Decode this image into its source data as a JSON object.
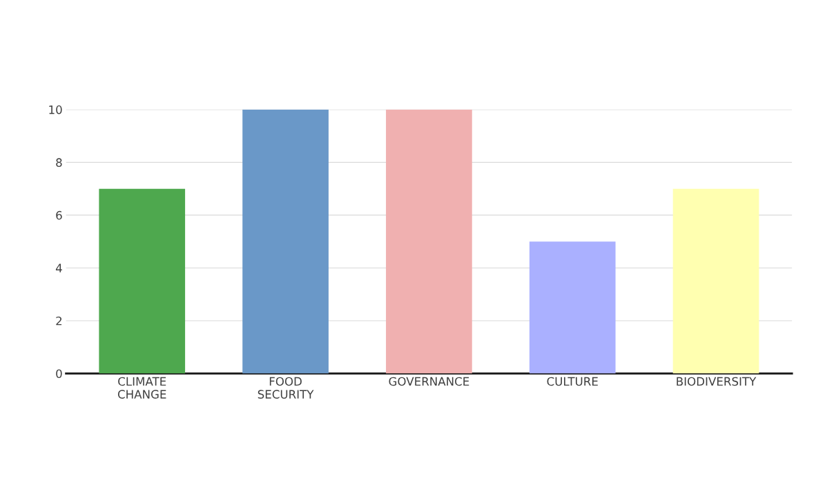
{
  "chart_data": {
    "type": "bar",
    "categories": [
      "CLIMATE\nCHANGE",
      "FOOD\nSECURITY",
      "GOVERNANCE",
      "CULTURE",
      "BIODIVERSITY"
    ],
    "values": [
      7,
      10,
      10,
      5,
      7
    ],
    "colors": [
      "#4ea84e",
      "#6a98c8",
      "#f0b0b0",
      "#aab0ff",
      "#ffffb0"
    ],
    "ylim": [
      0,
      10
    ],
    "yticks": [
      0,
      2,
      4,
      6,
      8,
      10
    ],
    "grid": "y"
  }
}
